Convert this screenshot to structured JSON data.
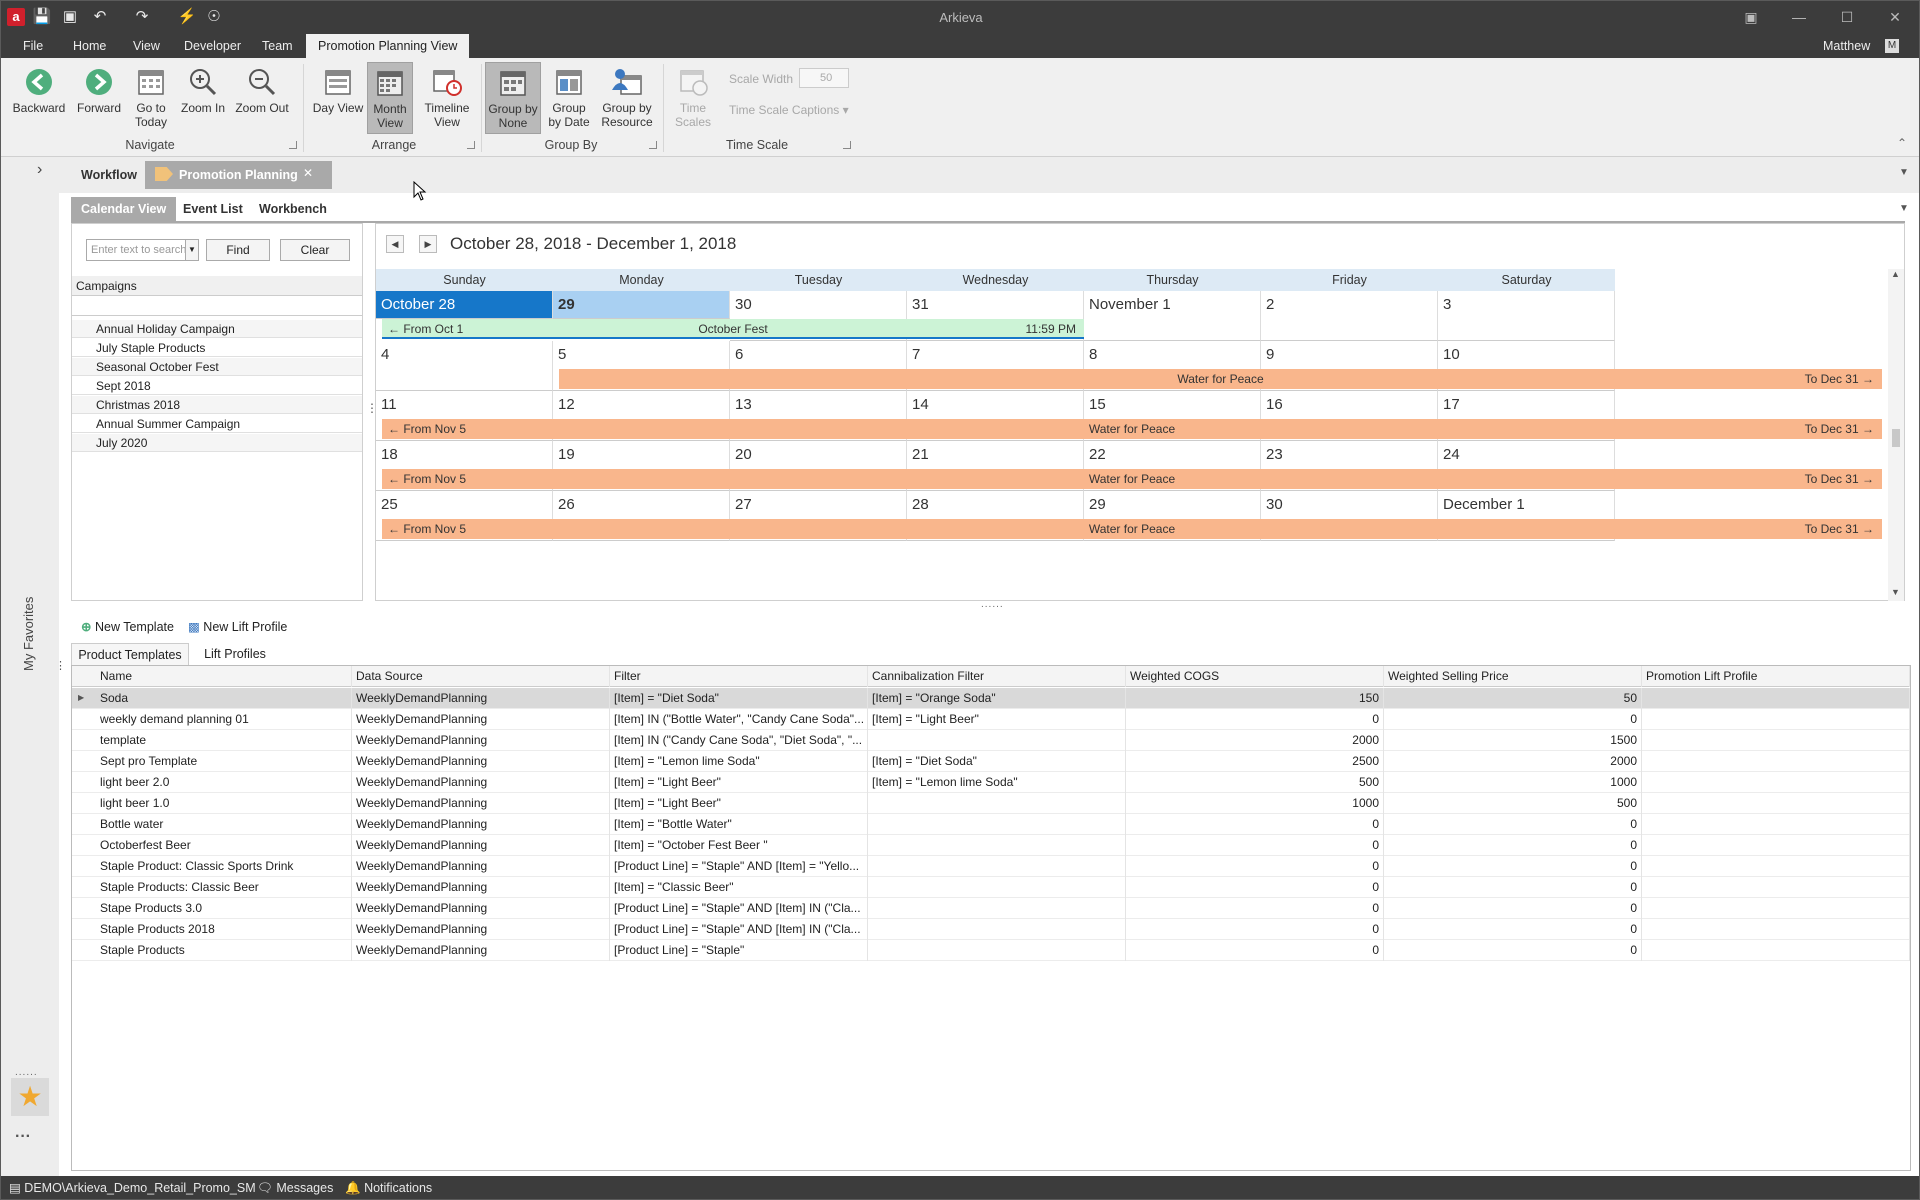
{
  "window": {
    "title": "Arkieva",
    "user": "Matthew",
    "user_badge": "M"
  },
  "menu": [
    "File",
    "Home",
    "View",
    "Developer",
    "Team",
    "Promotion Planning View"
  ],
  "ribbon": {
    "navigate": {
      "label": "Navigate",
      "buttons": [
        "Backward",
        "Forward",
        "Go to Today",
        "Zoom In",
        "Zoom Out"
      ]
    },
    "arrange": {
      "label": "Arrange",
      "buttons": [
        "Day View",
        "Month View",
        "Timeline View"
      ]
    },
    "group_by": {
      "label": "Group By",
      "buttons": [
        "Group by None",
        "Group by Date",
        "Group by Resource"
      ]
    },
    "time_scale": {
      "label": "Time Scale",
      "buttons": [
        "Time Scales"
      ],
      "scale_width_label": "Scale Width",
      "scale_width_value": "50",
      "captions": "Time Scale Captions"
    }
  },
  "doc_tabs": [
    "Workflow",
    "Promotion Planning"
  ],
  "sub_tabs": [
    "Calendar View",
    "Event List",
    "Workbench"
  ],
  "search": {
    "placeholder": "Enter text to search",
    "find": "Find",
    "clear": "Clear"
  },
  "campaigns": {
    "header": "Campaigns",
    "items": [
      "Annual Holiday Campaign",
      "July Staple Products",
      "Seasonal October Fest",
      "Sept 2018",
      "Christmas 2018",
      "Annual Summer Campaign",
      "July 2020"
    ]
  },
  "calendar": {
    "range": "October 28, 2018 - December 1, 2018",
    "weekdays": [
      "Sunday",
      "Monday",
      "Tuesday",
      "Wednesday",
      "Thursday",
      "Friday",
      "Saturday"
    ],
    "weeks": [
      [
        "October 28",
        "29",
        "30",
        "31",
        "November 1",
        "2",
        "3"
      ],
      [
        "4",
        "5",
        "6",
        "7",
        "8",
        "9",
        "10"
      ],
      [
        "11",
        "12",
        "13",
        "14",
        "15",
        "16",
        "17"
      ],
      [
        "18",
        "19",
        "20",
        "21",
        "22",
        "23",
        "24"
      ],
      [
        "25",
        "26",
        "27",
        "28",
        "29",
        "30",
        "December 1"
      ]
    ],
    "events": [
      {
        "from": "From Oct 1",
        "name": "October Fest",
        "end": "11:59 PM",
        "color": "#ccf3d6"
      },
      {
        "from": "",
        "name": "Water for Peace",
        "end": "To Dec 31",
        "color": "#f9b68c"
      },
      {
        "from": "From Nov 5",
        "name": "Water for Peace",
        "end": "To Dec 31",
        "color": "#f9b68c"
      },
      {
        "from": "From Nov 5",
        "name": "Water for Peace",
        "end": "To Dec 31",
        "color": "#f9b68c"
      },
      {
        "from": "From Nov 5",
        "name": "Water for Peace",
        "end": "To Dec 31",
        "color": "#f9b68c"
      }
    ]
  },
  "lower_toolbar": {
    "new_template": "New Template",
    "new_lift_profile": "New Lift Profile"
  },
  "lower_tabs": [
    "Product Templates",
    "Lift Profiles"
  ],
  "templates": {
    "columns": [
      "Name",
      "Data Source",
      "Filter",
      "Cannibalization Filter",
      "Weighted COGS",
      "Weighted Selling Price",
      "Promotion Lift Profile"
    ],
    "rows": [
      [
        "Soda",
        "WeeklyDemandPlanning",
        "[Item] = \"Diet Soda\"",
        "[Item] = \"Orange Soda\"",
        "150",
        "50",
        ""
      ],
      [
        "weekly demand planning 01",
        "WeeklyDemandPlanning",
        "[Item]  IN (\"Bottle Water\", \"Candy Cane Soda\"...",
        "[Item] = \"Light Beer\"",
        "0",
        "0",
        ""
      ],
      [
        "template",
        "WeeklyDemandPlanning",
        "[Item]  IN (\"Candy Cane Soda\", \"Diet Soda\", \"...",
        "",
        "2000",
        "1500",
        ""
      ],
      [
        "Sept pro Template",
        "WeeklyDemandPlanning",
        "[Item] = \"Lemon lime Soda\"",
        "[Item] = \"Diet Soda\"",
        "2500",
        "2000",
        ""
      ],
      [
        "light beer 2.0",
        "WeeklyDemandPlanning",
        "[Item] = \"Light Beer\"",
        "[Item] = \"Lemon lime Soda\"",
        "500",
        "1000",
        ""
      ],
      [
        "light beer 1.0",
        "WeeklyDemandPlanning",
        "[Item] = \"Light Beer\"",
        "",
        "1000",
        "500",
        ""
      ],
      [
        "Bottle water",
        "WeeklyDemandPlanning",
        "[Item] = \"Bottle Water\"",
        "",
        "0",
        "0",
        ""
      ],
      [
        "Octoberfest Beer",
        "WeeklyDemandPlanning",
        "[Item] = \"October Fest Beer \"",
        "",
        "0",
        "0",
        ""
      ],
      [
        "Staple Product: Classic Sports Drink",
        "WeeklyDemandPlanning",
        "[Product Line] = \"Staple\" AND [Item] = \"Yello...",
        "",
        "0",
        "0",
        ""
      ],
      [
        "Staple Products: Classic Beer",
        "WeeklyDemandPlanning",
        "[Item] = \"Classic Beer\"",
        "",
        "0",
        "0",
        ""
      ],
      [
        "Stape Products 3.0",
        "WeeklyDemandPlanning",
        "[Product Line] = \"Staple\" AND [Item]  IN (\"Cla...",
        "",
        "0",
        "0",
        ""
      ],
      [
        "Staple Products 2018",
        "WeeklyDemandPlanning",
        "[Product Line] = \"Staple\" AND [Item]  IN (\"Cla...",
        "",
        "0",
        "0",
        ""
      ],
      [
        "Staple Products",
        "WeeklyDemandPlanning",
        "[Product Line] = \"Staple\"",
        "",
        "0",
        "0",
        ""
      ]
    ]
  },
  "favorites_label": "My Favorites",
  "status": {
    "connection": "DEMO\\Arkieva_Demo_Retail_Promo_SM",
    "messages": "Messages",
    "notifications": "Notifications"
  }
}
